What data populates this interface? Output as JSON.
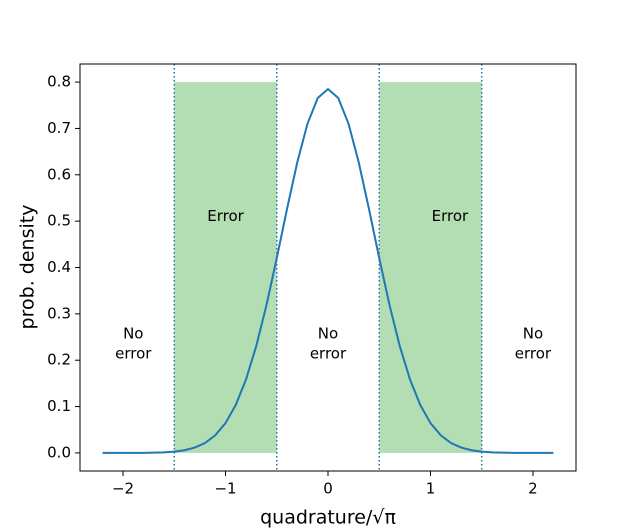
{
  "chart_data": {
    "type": "line",
    "xlabel": "quadrature/√π",
    "ylabel": "prob. density",
    "x": [
      -2.2,
      -2.1,
      -2.0,
      -1.9,
      -1.8,
      -1.7,
      -1.6,
      -1.5,
      -1.4,
      -1.3,
      -1.2,
      -1.1,
      -1.0,
      -0.9,
      -0.8,
      -0.7,
      -0.6,
      -0.5,
      -0.4,
      -0.3,
      -0.2,
      -0.1,
      0.0,
      0.1,
      0.2,
      0.3,
      0.4,
      0.5,
      0.6,
      0.7,
      0.8,
      0.9,
      1.0,
      1.1,
      1.2,
      1.3,
      1.4,
      1.5,
      1.6,
      1.7,
      1.8,
      1.9,
      2.0,
      2.1,
      2.2
    ],
    "series": [
      {
        "color": "#1f77b4",
        "values": [
          0,
          0,
          0,
          0.0001,
          0.0002,
          0.0006,
          0.0013,
          0.0028,
          0.0058,
          0.0115,
          0.0214,
          0.0381,
          0.0644,
          0.1036,
          0.1585,
          0.2306,
          0.3192,
          0.4202,
          0.5262,
          0.6268,
          0.7103,
          0.7656,
          0.785,
          0.7656,
          0.7103,
          0.6268,
          0.5262,
          0.4202,
          0.3192,
          0.2306,
          0.1585,
          0.1036,
          0.0644,
          0.0381,
          0.0214,
          0.0115,
          0.0058,
          0.0028,
          0.0013,
          0.0006,
          0.0002,
          0.0001,
          0,
          0,
          0
        ]
      }
    ],
    "shaded_regions": [
      {
        "x": [
          -1.5,
          -0.5
        ],
        "y": [
          0,
          0.8
        ],
        "color": "#2ca02c"
      },
      {
        "x": [
          0.5,
          1.5
        ],
        "y": [
          0,
          0.8
        ],
        "color": "#2ca02c"
      }
    ],
    "vlines": {
      "x": [
        -1.5,
        -0.5,
        0.5,
        1.5
      ],
      "color": "#1f77b4",
      "style": "dotted"
    },
    "annotations": [
      [
        "Error"
      ],
      [
        "Error"
      ],
      [
        "No",
        "error"
      ],
      [
        "No",
        "error"
      ],
      [
        "No",
        "error"
      ]
    ],
    "xlim": [
      -2.42,
      2.42
    ],
    "ylim": [
      -0.039,
      0.839
    ],
    "xticks": [
      {
        "value": -2,
        "label": "−2"
      },
      {
        "value": -1,
        "label": "−1"
      },
      0,
      1,
      2
    ],
    "yticks": [
      {
        "value": 0,
        "label": "0.0"
      },
      0.1,
      0.2,
      0.3,
      0.4,
      0.5,
      0.6,
      0.7,
      0.8
    ]
  }
}
